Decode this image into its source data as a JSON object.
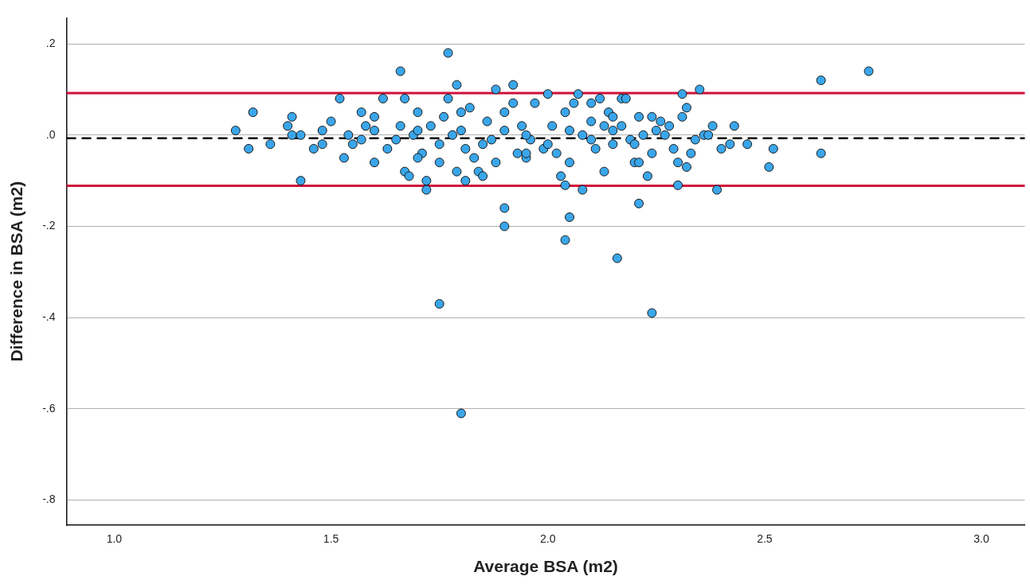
{
  "chart_data": {
    "type": "scatter",
    "xlabel": "Average BSA (m2)",
    "ylabel": "Difference in BSA (m2)",
    "xlim": [
      0.89,
      3.1
    ],
    "ylim": [
      -0.855,
      0.257
    ],
    "xticks": [
      {
        "value": 1,
        "label": "1.0"
      },
      {
        "value": 1.5,
        "label": "1.5"
      },
      {
        "value": 2,
        "label": "2.0"
      },
      {
        "value": 2.5,
        "label": "2.5"
      },
      {
        "value": 3,
        "label": "3.0"
      }
    ],
    "yticks": [
      {
        "value": 0.2,
        "label": ".2"
      },
      {
        "value": 0,
        "label": ".0"
      },
      {
        "value": -0.2,
        "label": "-.2"
      },
      {
        "value": -0.4,
        "label": "-.4"
      },
      {
        "value": -0.6,
        "label": "-.6"
      },
      {
        "value": -0.8,
        "label": "-.8"
      }
    ],
    "grid": "y",
    "legend": false,
    "marker": "circle",
    "ref_lines": [
      {
        "axis": "y",
        "value": 0.092,
        "color": "#d0103a",
        "line_style": "solid"
      },
      {
        "axis": "y",
        "value": -0.111,
        "color": "#d0103a",
        "line_style": "solid"
      },
      {
        "axis": "y",
        "value": -0.007,
        "color": "#000000",
        "line_style": "dashed"
      }
    ],
    "series": [
      {
        "color": "#3aa6ea",
        "x": [
          1.28,
          1.31,
          1.32,
          1.36,
          1.4,
          1.41,
          1.41,
          1.43,
          1.43,
          1.46,
          1.48,
          1.48,
          1.5,
          1.52,
          1.53,
          1.54,
          1.57,
          1.58,
          1.57,
          1.6,
          1.62,
          1.63,
          1.66,
          1.66,
          1.67,
          1.67,
          1.68,
          1.69,
          1.7,
          1.71,
          1.72,
          1.72,
          1.73,
          1.75,
          1.75,
          1.76,
          1.77,
          1.77,
          1.78,
          1.79,
          1.79,
          1.8,
          1.81,
          1.81,
          1.82,
          1.83,
          1.84,
          1.85,
          1.86,
          1.87,
          1.88,
          1.88,
          1.9,
          1.9,
          1.9,
          1.92,
          1.92,
          1.93,
          1.94,
          1.95,
          1.96,
          1.97,
          1.99,
          2.0,
          2.01,
          2.02,
          2.03,
          2.04,
          2.04,
          2.04,
          2.05,
          2.05,
          2.06,
          2.07,
          2.08,
          2.08,
          2.1,
          2.1,
          2.11,
          2.12,
          2.13,
          2.13,
          2.14,
          2.15,
          2.16,
          2.17,
          2.17,
          2.18,
          2.19,
          2.2,
          2.21,
          2.21,
          2.21,
          2.22,
          2.23,
          2.24,
          2.24,
          2.24,
          2.26,
          2.27,
          2.28,
          2.29,
          2.3,
          2.3,
          2.31,
          2.31,
          2.32,
          2.32,
          2.33,
          2.34,
          2.35,
          2.36,
          2.37,
          2.38,
          2.39,
          2.4,
          2.42,
          2.43,
          2.46,
          2.51,
          2.52,
          2.63,
          2.63,
          2.74,
          1.55,
          1.6,
          1.65,
          1.7,
          1.75,
          1.8,
          1.85,
          1.9,
          1.95,
          2.0,
          2.05,
          2.1,
          2.15,
          2.2,
          2.25,
          1.6,
          1.7,
          1.8,
          1.95,
          2.15
        ],
        "values": [
          0.01,
          -0.03,
          0.05,
          -0.02,
          0.02,
          0.04,
          0.0,
          0.0,
          -0.1,
          -0.03,
          0.01,
          -0.02,
          0.03,
          0.08,
          -0.05,
          0.0,
          -0.01,
          0.02,
          0.05,
          -0.06,
          0.08,
          -0.03,
          0.14,
          0.02,
          -0.08,
          0.08,
          -0.09,
          0.0,
          0.05,
          -0.04,
          -0.1,
          -0.12,
          0.02,
          -0.06,
          -0.37,
          0.04,
          0.08,
          0.18,
          0.0,
          0.11,
          -0.08,
          -0.61,
          -0.03,
          -0.1,
          0.06,
          -0.05,
          -0.08,
          -0.09,
          0.03,
          -0.01,
          0.1,
          -0.06,
          0.05,
          -0.16,
          -0.2,
          0.11,
          0.07,
          -0.04,
          0.02,
          -0.05,
          -0.01,
          0.07,
          -0.03,
          0.09,
          0.02,
          -0.04,
          -0.09,
          0.05,
          -0.11,
          -0.23,
          -0.18,
          -0.06,
          0.07,
          0.09,
          -0.12,
          0.0,
          0.07,
          0.03,
          -0.03,
          0.08,
          0.02,
          -0.08,
          0.05,
          -0.02,
          -0.27,
          0.08,
          0.02,
          0.08,
          -0.01,
          -0.06,
          0.04,
          -0.06,
          -0.15,
          0.0,
          -0.09,
          0.04,
          -0.39,
          -0.04,
          0.03,
          0.0,
          0.02,
          -0.03,
          -0.06,
          -0.11,
          0.04,
          0.09,
          0.06,
          -0.07,
          -0.04,
          -0.01,
          0.1,
          0.0,
          0.0,
          0.02,
          -0.12,
          -0.03,
          -0.02,
          0.02,
          -0.02,
          -0.07,
          -0.03,
          0.12,
          -0.04,
          0.14,
          -0.02,
          0.01,
          -0.01,
          0.01,
          -0.02,
          0.01,
          -0.02,
          0.01,
          0.0,
          -0.02,
          0.01,
          -0.01,
          0.01,
          -0.02,
          0.01,
          0.04,
          -0.05,
          0.05,
          -0.04,
          0.04
        ]
      }
    ]
  }
}
